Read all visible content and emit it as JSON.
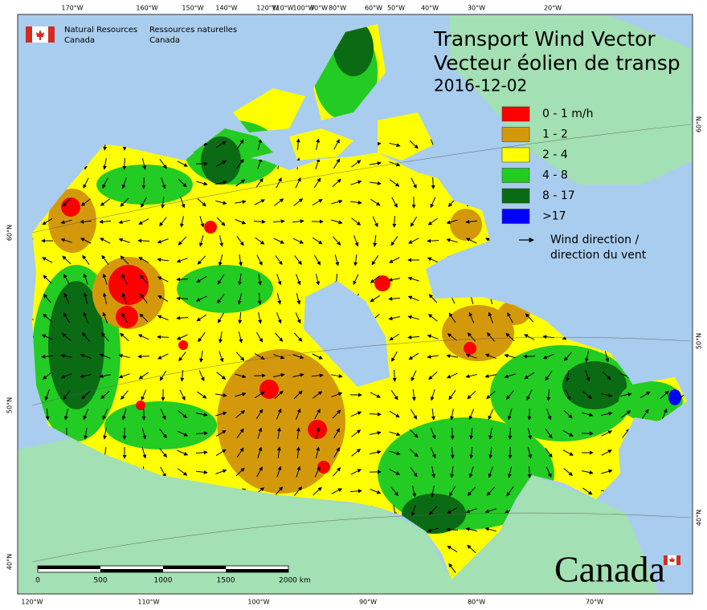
{
  "header": {
    "agency_en": [
      "Natural Resources",
      "Canada"
    ],
    "agency_fr": [
      "Ressources naturelles",
      "Canada"
    ]
  },
  "title": {
    "line1": "Transport Wind Vector",
    "line2": "Vecteur éolien de transp",
    "date": "2016-12-02"
  },
  "legend": {
    "items": [
      {
        "label": "0 - 1 m/h",
        "color": "#ff0000"
      },
      {
        "label": "1 - 2",
        "color": "#d4990b"
      },
      {
        "label": "2 - 4",
        "color": "#ffff00"
      },
      {
        "label": "4 - 8",
        "color": "#22cc22"
      },
      {
        "label": "8 - 17",
        "color": "#0b6b14"
      },
      {
        "label": ">17",
        "color": "#0000ff"
      }
    ],
    "wind": [
      "Wind direction /",
      "direction du vent"
    ]
  },
  "graticule": {
    "top": [
      "170°W",
      "160°W",
      "150°W",
      "140°W",
      "120°W",
      "110°W",
      "100°W",
      "90°W",
      "80°W",
      "60°W",
      "50°W",
      "40°W",
      "30°W",
      "20°W"
    ],
    "bottom": [
      "120°W",
      "110°W",
      "100°W",
      "90°W",
      "80°W",
      "70°W"
    ],
    "left": [
      "60°N",
      "50°N",
      "40°N"
    ],
    "right": [
      "60°N",
      "50°N",
      "40°N"
    ]
  },
  "scale_bar": {
    "labels": [
      "0",
      "500",
      "1000",
      "1500",
      "2000 km"
    ]
  },
  "wordmark": "Canada"
}
